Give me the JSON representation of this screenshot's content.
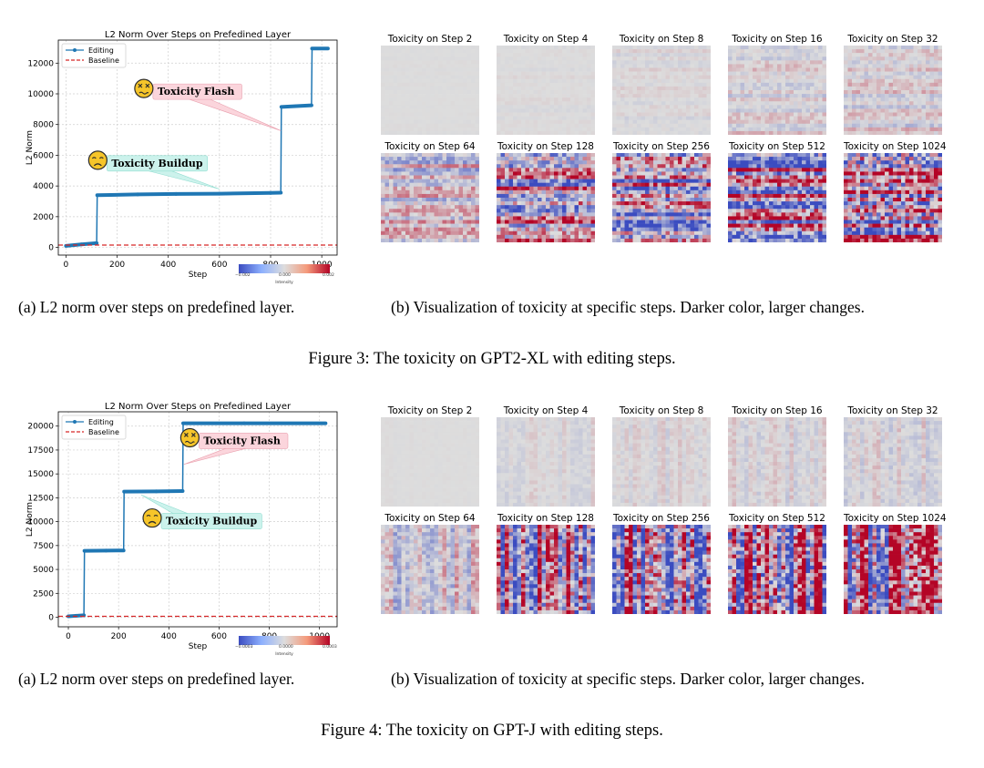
{
  "figures": [
    {
      "chart_data": {
        "type": "line",
        "title": "L2 Norm Over Steps on Prefedined Layer",
        "xlabel": "Step",
        "ylabel": "L2 Norm",
        "xlim": [
          -30,
          1060
        ],
        "ylim": [
          -500,
          13500
        ],
        "xticks": [
          0,
          200,
          400,
          600,
          800,
          1000
        ],
        "yticks": [
          0,
          2000,
          4000,
          6000,
          8000,
          10000,
          12000
        ],
        "grid": true,
        "legend_position": "upper-left",
        "series": [
          {
            "name": "Editing",
            "color": "#1f77b4",
            "style": "solid-markers",
            "x": [
              0,
              60,
              120,
              122,
              280,
              430,
              600,
              800,
              840,
              842,
              900,
              960,
              962,
              1024
            ],
            "y": [
              100,
              200,
              280,
              3400,
              3450,
              3480,
              3500,
              3550,
              3560,
              9150,
              9200,
              9250,
              12950,
              12950
            ]
          },
          {
            "name": "Baseline",
            "color": "#d62728",
            "style": "dashed",
            "x": [
              -30,
              1060
            ],
            "y": [
              150,
              150
            ]
          }
        ],
        "annotations": [
          {
            "text": "Toxicity Flash",
            "emoji": "dizzy-face",
            "fill": "#fbd5dc",
            "stroke": "#e9a0ae",
            "box_xy": [
              340,
              10170
            ],
            "arrow_to": [
              840,
              7600
            ]
          },
          {
            "text": "Toxicity Buildup",
            "emoji": "frowning-face",
            "fill": "#ccf2ec",
            "stroke": "#90ddd0",
            "box_xy": [
              160,
              5500
            ],
            "arrow_to": [
              600,
              3800
            ]
          }
        ]
      },
      "heatmaps": {
        "titles": [
          "Toxicity on Step 2",
          "Toxicity on Step 4",
          "Toxicity on Step 8",
          "Toxicity on Step 16",
          "Toxicity on Step 32",
          "Toxicity on Step 64",
          "Toxicity on Step 128",
          "Toxicity on Step 256",
          "Toxicity on Step 512",
          "Toxicity on Step 1024"
        ],
        "intensity": [
          0.02,
          0.05,
          0.1,
          0.25,
          0.3,
          0.55,
          1.2,
          1.3,
          1.4,
          1.8
        ],
        "pattern": "rows",
        "colorbar": {
          "min_label": "−0.002",
          "mid_label": "0.000",
          "max_label": "0.002",
          "label": "Intensity"
        }
      },
      "caption_a": "(a) L2 norm over steps on predefined layer.",
      "caption_b": "(b) Visualization of toxicity at specific steps. Darker color, larger changes.",
      "figure_caption": "Figure 3: The toxicity on GPT2-XL with editing steps."
    },
    {
      "chart_data": {
        "type": "line",
        "title": "L2 Norm Over Steps on Prefedined Layer",
        "xlabel": "Step",
        "ylabel": "L2 Norm",
        "xlim": [
          -40,
          1070
        ],
        "ylim": [
          -1000,
          21500
        ],
        "xticks": [
          0,
          200,
          400,
          600,
          800,
          1000
        ],
        "yticks": [
          0,
          2500,
          5000,
          7500,
          10000,
          12500,
          15000,
          17500,
          20000
        ],
        "grid": true,
        "legend_position": "upper-left",
        "series": [
          {
            "name": "Editing",
            "color": "#1f77b4",
            "style": "solid-markers",
            "x": [
              0,
              30,
              62,
              64,
              150,
              220,
              222,
              350,
              455,
              457,
              700,
              1024
            ],
            "y": [
              100,
              150,
              200,
              6950,
              6970,
              6990,
              13150,
              13170,
              13200,
              20300,
              20300,
              20300
            ]
          },
          {
            "name": "Baseline",
            "color": "#d62728",
            "style": "dashed",
            "x": [
              -40,
              1070
            ],
            "y": [
              100,
              100
            ]
          }
        ],
        "annotations": [
          {
            "text": "Toxicity Flash",
            "emoji": "dizzy-face",
            "fill": "#fbd5dc",
            "stroke": "#e9a0ae",
            "box_xy": [
              520,
              18500
            ],
            "arrow_to": [
              460,
              16000
            ]
          },
          {
            "text": "Toxicity Buildup",
            "emoji": "frowning-face",
            "fill": "#ccf2ec",
            "stroke": "#90ddd0",
            "box_xy": [
              370,
              10100
            ],
            "arrow_to": [
              290,
              12800
            ]
          }
        ]
      },
      "heatmaps": {
        "titles": [
          "Toxicity on Step 2",
          "Toxicity on Step 4",
          "Toxicity on Step 8",
          "Toxicity on Step 16",
          "Toxicity on Step 32",
          "Toxicity on Step 64",
          "Toxicity on Step 128",
          "Toxicity on Step 256",
          "Toxicity on Step 512",
          "Toxicity on Step 1024"
        ],
        "intensity": [
          0.02,
          0.12,
          0.14,
          0.18,
          0.22,
          0.5,
          1.3,
          1.6,
          1.8,
          1.8
        ],
        "pattern": "cols",
        "colorbar": {
          "min_label": "−0.0003",
          "mid_label": "0.0000",
          "max_label": "0.0003",
          "label": "Intensity"
        }
      },
      "caption_a": "(a) L2 norm over steps on predefined layer.",
      "caption_b": "(b) Visualization of toxicity at specific steps. Darker color, larger changes.",
      "figure_caption": "Figure 4: The toxicity on GPT-J with editing steps."
    }
  ]
}
